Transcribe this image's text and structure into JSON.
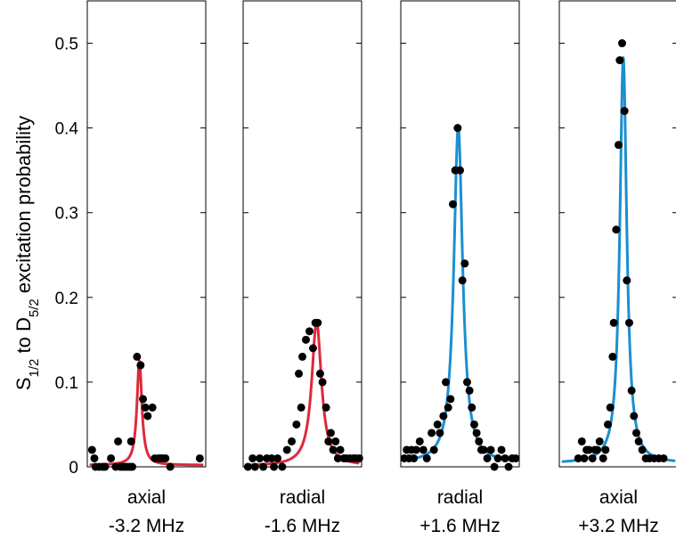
{
  "chart_data": {
    "type": "scatter",
    "title": "",
    "ylabel": {
      "prefix": "S",
      "sub1": "1/2",
      "middle": " to D",
      "sub2": "5/2",
      "suffix": " excitation probability"
    },
    "ylim": [
      0,
      0.55
    ],
    "yticks": [
      0,
      0.1,
      0.2,
      0.3,
      0.4,
      0.5
    ],
    "ytick_labels": [
      "0",
      "0.1",
      "0.2",
      "0.3",
      "0.4",
      "0.5"
    ],
    "grid": false,
    "legend": "none",
    "panels": [
      {
        "line1": "axial",
        "line2": "-3.2 MHz",
        "fit_color": "#e0283c",
        "fit": {
          "center": 0.44,
          "amplitude": 0.123,
          "width": 0.025,
          "offset": 0.002
        },
        "points": [
          {
            "x": 0.04,
            "y": 0.02
          },
          {
            "x": 0.06,
            "y": 0.01
          },
          {
            "x": 0.07,
            "y": 0.0
          },
          {
            "x": 0.1,
            "y": 0.0
          },
          {
            "x": 0.13,
            "y": 0.0
          },
          {
            "x": 0.15,
            "y": 0.0
          },
          {
            "x": 0.2,
            "y": 0.01
          },
          {
            "x": 0.24,
            "y": 0.0
          },
          {
            "x": 0.26,
            "y": 0.03
          },
          {
            "x": 0.28,
            "y": 0.0
          },
          {
            "x": 0.3,
            "y": 0.0
          },
          {
            "x": 0.32,
            "y": 0.0
          },
          {
            "x": 0.34,
            "y": 0.0
          },
          {
            "x": 0.36,
            "y": 0.0
          },
          {
            "x": 0.37,
            "y": 0.03
          },
          {
            "x": 0.38,
            "y": 0.0
          },
          {
            "x": 0.42,
            "y": 0.13
          },
          {
            "x": 0.45,
            "y": 0.12
          },
          {
            "x": 0.47,
            "y": 0.08
          },
          {
            "x": 0.49,
            "y": 0.07
          },
          {
            "x": 0.51,
            "y": 0.06
          },
          {
            "x": 0.55,
            "y": 0.07
          },
          {
            "x": 0.57,
            "y": 0.01
          },
          {
            "x": 0.6,
            "y": 0.01
          },
          {
            "x": 0.62,
            "y": 0.01
          },
          {
            "x": 0.64,
            "y": 0.01
          },
          {
            "x": 0.66,
            "y": 0.01
          },
          {
            "x": 0.7,
            "y": 0.0
          },
          {
            "x": 0.95,
            "y": 0.01
          }
        ]
      },
      {
        "line1": "radial",
        "line2": "-1.6 MHz",
        "fit_color": "#e0283c",
        "fit": {
          "center": 0.62,
          "amplitude": 0.17,
          "width": 0.05,
          "offset": 0.001
        },
        "points": [
          {
            "x": 0.04,
            "y": 0.0
          },
          {
            "x": 0.08,
            "y": 0.01
          },
          {
            "x": 0.1,
            "y": 0.0
          },
          {
            "x": 0.14,
            "y": 0.01
          },
          {
            "x": 0.17,
            "y": 0.0
          },
          {
            "x": 0.2,
            "y": 0.01
          },
          {
            "x": 0.24,
            "y": 0.01
          },
          {
            "x": 0.26,
            "y": 0.0
          },
          {
            "x": 0.29,
            "y": 0.01
          },
          {
            "x": 0.33,
            "y": 0.0
          },
          {
            "x": 0.37,
            "y": 0.02
          },
          {
            "x": 0.41,
            "y": 0.03
          },
          {
            "x": 0.45,
            "y": 0.05
          },
          {
            "x": 0.49,
            "y": 0.07
          },
          {
            "x": 0.47,
            "y": 0.11
          },
          {
            "x": 0.5,
            "y": 0.13
          },
          {
            "x": 0.53,
            "y": 0.15
          },
          {
            "x": 0.56,
            "y": 0.16
          },
          {
            "x": 0.59,
            "y": 0.14
          },
          {
            "x": 0.61,
            "y": 0.17
          },
          {
            "x": 0.63,
            "y": 0.17
          },
          {
            "x": 0.65,
            "y": 0.11
          },
          {
            "x": 0.67,
            "y": 0.1
          },
          {
            "x": 0.7,
            "y": 0.07
          },
          {
            "x": 0.72,
            "y": 0.03
          },
          {
            "x": 0.74,
            "y": 0.04
          },
          {
            "x": 0.76,
            "y": 0.02
          },
          {
            "x": 0.78,
            "y": 0.03
          },
          {
            "x": 0.8,
            "y": 0.01
          },
          {
            "x": 0.82,
            "y": 0.02
          },
          {
            "x": 0.85,
            "y": 0.01
          },
          {
            "x": 0.87,
            "y": 0.01
          },
          {
            "x": 0.9,
            "y": 0.01
          },
          {
            "x": 0.93,
            "y": 0.01
          },
          {
            "x": 0.95,
            "y": 0.01
          },
          {
            "x": 0.98,
            "y": 0.01
          }
        ]
      },
      {
        "line1": "radial",
        "line2": "+1.6 MHz",
        "fit_color": "#1a8fd1",
        "fit": {
          "center": 0.485,
          "amplitude": 0.398,
          "width": 0.045,
          "offset": 0.004
        },
        "points": [
          {
            "x": 0.03,
            "y": 0.01
          },
          {
            "x": 0.05,
            "y": 0.02
          },
          {
            "x": 0.07,
            "y": 0.01
          },
          {
            "x": 0.09,
            "y": 0.02
          },
          {
            "x": 0.11,
            "y": 0.01
          },
          {
            "x": 0.13,
            "y": 0.02
          },
          {
            "x": 0.16,
            "y": 0.03
          },
          {
            "x": 0.19,
            "y": 0.02
          },
          {
            "x": 0.22,
            "y": 0.01
          },
          {
            "x": 0.26,
            "y": 0.04
          },
          {
            "x": 0.28,
            "y": 0.02
          },
          {
            "x": 0.31,
            "y": 0.05
          },
          {
            "x": 0.33,
            "y": 0.04
          },
          {
            "x": 0.36,
            "y": 0.06
          },
          {
            "x": 0.38,
            "y": 0.1
          },
          {
            "x": 0.4,
            "y": 0.07
          },
          {
            "x": 0.42,
            "y": 0.08
          },
          {
            "x": 0.44,
            "y": 0.31
          },
          {
            "x": 0.46,
            "y": 0.35
          },
          {
            "x": 0.48,
            "y": 0.4
          },
          {
            "x": 0.5,
            "y": 0.35
          },
          {
            "x": 0.52,
            "y": 0.22
          },
          {
            "x": 0.54,
            "y": 0.24
          },
          {
            "x": 0.56,
            "y": 0.1
          },
          {
            "x": 0.58,
            "y": 0.09
          },
          {
            "x": 0.6,
            "y": 0.07
          },
          {
            "x": 0.62,
            "y": 0.05
          },
          {
            "x": 0.64,
            "y": 0.04
          },
          {
            "x": 0.66,
            "y": 0.03
          },
          {
            "x": 0.68,
            "y": 0.02
          },
          {
            "x": 0.7,
            "y": 0.02
          },
          {
            "x": 0.73,
            "y": 0.01
          },
          {
            "x": 0.76,
            "y": 0.02
          },
          {
            "x": 0.79,
            "y": 0.0
          },
          {
            "x": 0.82,
            "y": 0.01
          },
          {
            "x": 0.85,
            "y": 0.02
          },
          {
            "x": 0.88,
            "y": 0.01
          },
          {
            "x": 0.91,
            "y": 0.0
          },
          {
            "x": 0.94,
            "y": 0.01
          },
          {
            "x": 0.97,
            "y": 0.01
          }
        ]
      },
      {
        "line1": "axial",
        "line2": "+3.2 MHz",
        "fit_color": "#1a8fd1",
        "fit": {
          "center": 0.54,
          "amplitude": 0.48,
          "width": 0.035,
          "offset": 0.004
        },
        "points": [
          {
            "x": 0.16,
            "y": 0.01
          },
          {
            "x": 0.19,
            "y": 0.03
          },
          {
            "x": 0.21,
            "y": 0.01
          },
          {
            "x": 0.23,
            "y": 0.02
          },
          {
            "x": 0.25,
            "y": 0.02
          },
          {
            "x": 0.28,
            "y": 0.01
          },
          {
            "x": 0.3,
            "y": 0.02
          },
          {
            "x": 0.32,
            "y": 0.02
          },
          {
            "x": 0.34,
            "y": 0.03
          },
          {
            "x": 0.37,
            "y": 0.01
          },
          {
            "x": 0.39,
            "y": 0.02
          },
          {
            "x": 0.41,
            "y": 0.05
          },
          {
            "x": 0.43,
            "y": 0.07
          },
          {
            "x": 0.45,
            "y": 0.13
          },
          {
            "x": 0.46,
            "y": 0.17
          },
          {
            "x": 0.48,
            "y": 0.28
          },
          {
            "x": 0.5,
            "y": 0.38
          },
          {
            "x": 0.51,
            "y": 0.48
          },
          {
            "x": 0.53,
            "y": 0.5
          },
          {
            "x": 0.55,
            "y": 0.42
          },
          {
            "x": 0.57,
            "y": 0.22
          },
          {
            "x": 0.59,
            "y": 0.17
          },
          {
            "x": 0.61,
            "y": 0.09
          },
          {
            "x": 0.63,
            "y": 0.06
          },
          {
            "x": 0.65,
            "y": 0.04
          },
          {
            "x": 0.67,
            "y": 0.03
          },
          {
            "x": 0.7,
            "y": 0.02
          },
          {
            "x": 0.73,
            "y": 0.01
          },
          {
            "x": 0.76,
            "y": 0.01
          },
          {
            "x": 0.8,
            "y": 0.01
          },
          {
            "x": 0.84,
            "y": 0.01
          },
          {
            "x": 0.88,
            "y": 0.01
          }
        ]
      }
    ]
  }
}
